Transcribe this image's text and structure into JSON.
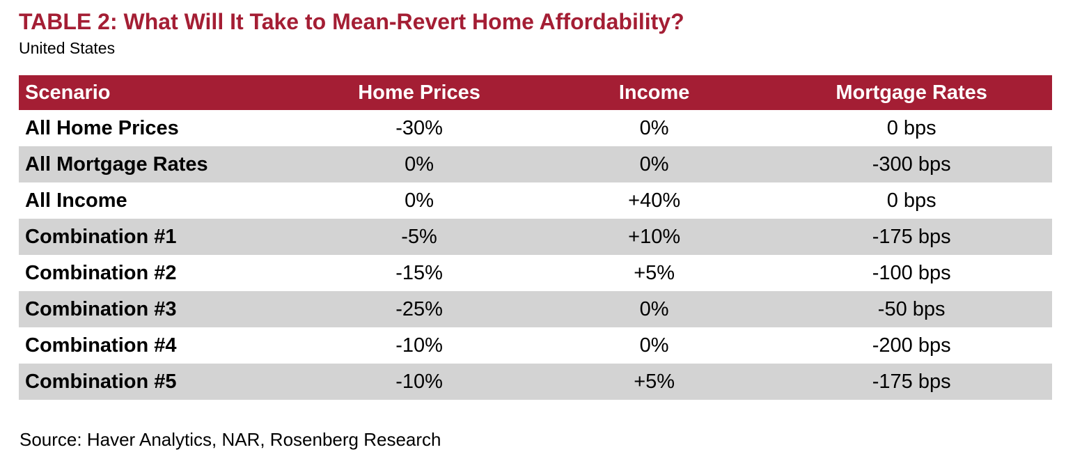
{
  "title": "TABLE 2: What Will It Take to Mean-Revert Home Affordability?",
  "subtitle": "United States",
  "source": "Source: Haver Analytics, NAR, Rosenberg Research",
  "colors": {
    "accent": "#A41E34",
    "row_alt_gray": "#D3D3D3",
    "header_text": "#FFFFFF",
    "body_text": "#000000"
  },
  "chart_data": {
    "type": "table",
    "title": "TABLE 2: What Will It Take to Mean-Revert Home Affordability?",
    "subtitle": "United States",
    "columns": [
      "Scenario",
      "Home Prices",
      "Income",
      "Mortgage Rates"
    ],
    "rows": [
      [
        "All Home Prices",
        "-30%",
        "0%",
        "0 bps"
      ],
      [
        "All Mortgage Rates",
        "0%",
        "0%",
        "-300 bps"
      ],
      [
        "All Income",
        "0%",
        "+40%",
        "0 bps"
      ],
      [
        "Combination #1",
        "-5%",
        "+10%",
        "-175 bps"
      ],
      [
        "Combination #2",
        "-15%",
        "+5%",
        "-100 bps"
      ],
      [
        "Combination #3",
        "-25%",
        "0%",
        "-50 bps"
      ],
      [
        "Combination #4",
        "-10%",
        "0%",
        "-200 bps"
      ],
      [
        "Combination #5",
        "-10%",
        "+5%",
        "-175 bps"
      ]
    ],
    "source": "Source: Haver Analytics, NAR, Rosenberg Research",
    "layout": {
      "header_background": "#A41E34",
      "alternating_rows": true,
      "first_row_background": "#FFFFFF",
      "value_alignment": "center",
      "label_alignment": "left"
    }
  }
}
